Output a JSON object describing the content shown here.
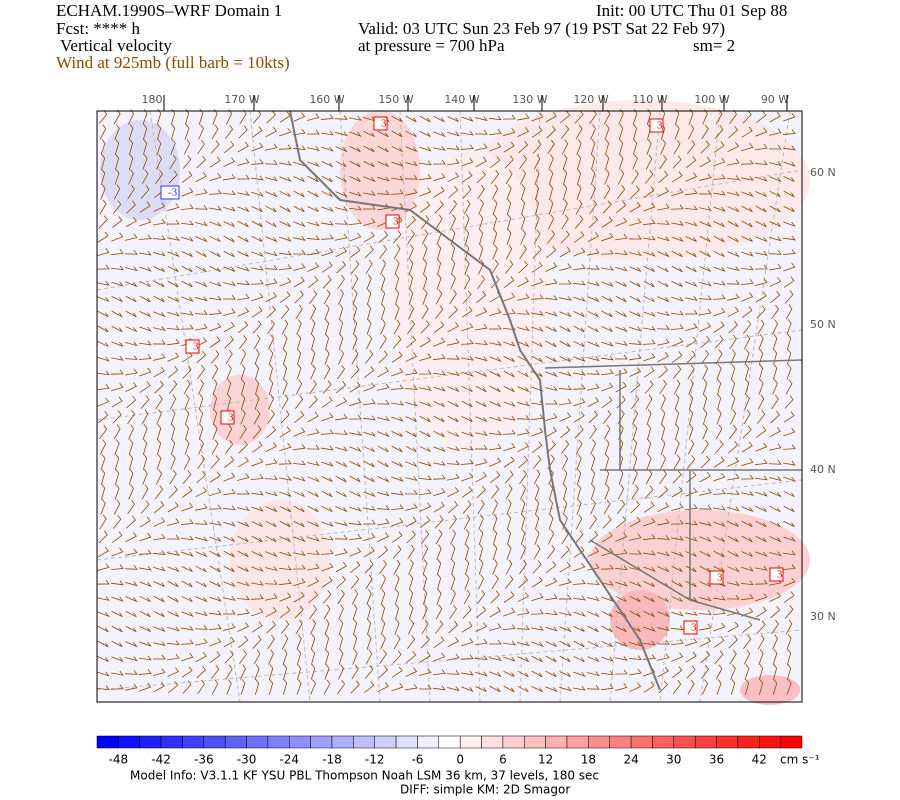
{
  "header": {
    "title": "ECHAM.1990S–WRF Domain 1",
    "init": "Init: 00 UTC Thu 01 Sep 88",
    "fcst": "Fcst: **** h",
    "valid": "Valid: 03 UTC Sun 23 Feb 97 (19 PST Sat 22 Feb 97)",
    "field": "Vertical velocity",
    "pressure": "at pressure =  700 hPa",
    "smoothing": "sm= 2",
    "wind": "Wind at 925mb (full barb = 10kts)"
  },
  "map": {
    "lon_labels": [
      "180",
      "170 W",
      "160 W",
      "150 W",
      "140 W",
      "130 W",
      "120 W",
      "110 W",
      "100 W",
      "90 W"
    ],
    "lat_labels": [
      "60 N",
      "50 N",
      "40 N",
      "30 N"
    ],
    "contour_labels": [
      "3",
      "3",
      "3",
      "-3",
      "3",
      "3",
      "3",
      "3",
      "3"
    ]
  },
  "colorbar": {
    "ticks": [
      -48,
      -42,
      -36,
      -30,
      -24,
      -18,
      -12,
      -6,
      0,
      6,
      12,
      18,
      24,
      30,
      36,
      42
    ],
    "unit": "cm s⁻¹"
  },
  "footer": {
    "model_info": "Model Info: V3.1.1    KF      YSU PBL   Thompson     Noah LSM   36 km,     37 levels,   180 sec",
    "diff": "DIFF: simple KM: 2D Smagor"
  }
}
